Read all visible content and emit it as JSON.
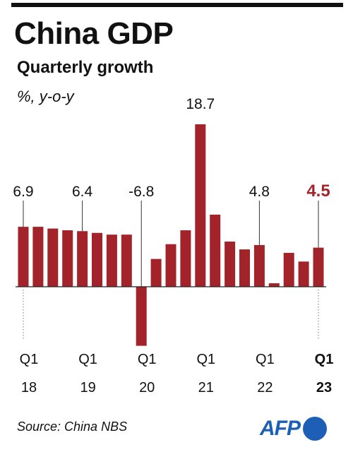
{
  "header": {
    "title": "China GDP",
    "subtitle": "Quarterly growth",
    "unit": "%, y-o-y"
  },
  "footer": {
    "source": "Source: China NBS",
    "logo_text": "AFP"
  },
  "colors": {
    "bar": "#a3232b",
    "highlight": "#a3232b",
    "text": "#111111",
    "logo": "#1d5fb6"
  },
  "chart_data": {
    "type": "bar",
    "categories": [
      "Q1 18",
      "Q2 18",
      "Q3 18",
      "Q4 18",
      "Q1 19",
      "Q2 19",
      "Q3 19",
      "Q4 19",
      "Q1 20",
      "Q2 20",
      "Q3 20",
      "Q4 20",
      "Q1 21",
      "Q2 21",
      "Q3 21",
      "Q4 21",
      "Q1 22",
      "Q2 22",
      "Q3 22",
      "Q4 22",
      "Q1 23"
    ],
    "values": [
      6.9,
      6.9,
      6.7,
      6.5,
      6.4,
      6.2,
      6.0,
      6.0,
      -6.8,
      3.2,
      4.9,
      6.5,
      18.7,
      8.3,
      5.2,
      4.3,
      4.8,
      0.4,
      3.9,
      2.9,
      4.5
    ],
    "data_labels": [
      {
        "index": 0,
        "text": "6.9"
      },
      {
        "index": 4,
        "text": "6.4"
      },
      {
        "index": 8,
        "text": "-6.8"
      },
      {
        "index": 12,
        "text": "18.7"
      },
      {
        "index": 16,
        "text": "4.8"
      },
      {
        "index": 20,
        "text": "4.5",
        "highlight": true
      }
    ],
    "x_ticks": [
      {
        "index": 0,
        "quarter": "Q1",
        "year": "18"
      },
      {
        "index": 4,
        "quarter": "Q1",
        "year": "19"
      },
      {
        "index": 8,
        "quarter": "Q1",
        "year": "20"
      },
      {
        "index": 12,
        "quarter": "Q1",
        "year": "21"
      },
      {
        "index": 16,
        "quarter": "Q1",
        "year": "22"
      },
      {
        "index": 20,
        "quarter": "Q1",
        "year": "23",
        "highlight": true
      }
    ],
    "ylim": [
      -6.8,
      18.7
    ],
    "grid": false,
    "legend": "none"
  }
}
